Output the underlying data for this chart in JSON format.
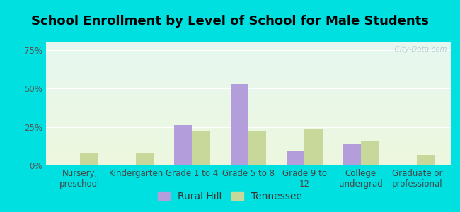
{
  "title": "School Enrollment by Level of School for Male Students",
  "categories": [
    "Nursery,\npreschool",
    "Kindergarten",
    "Grade 1 to 4",
    "Grade 5 to 8",
    "Grade 9 to\n12",
    "College\nundergrad",
    "Graduate or\nprofessional"
  ],
  "rural_hill": [
    0,
    0,
    26,
    53,
    9,
    14,
    0
  ],
  "tennessee": [
    8,
    8,
    22,
    22,
    24,
    16,
    7
  ],
  "rural_hill_color": "#b39ddb",
  "tennessee_color": "#c8d89a",
  "bar_width": 0.32,
  "yticks": [
    0,
    25,
    50,
    75
  ],
  "ytick_labels": [
    "0%",
    "25%",
    "50%",
    "75%"
  ],
  "ylim": [
    0,
    80
  ],
  "background_color": "#00e0e0",
  "title_fontsize": 13,
  "tick_fontsize": 8.5,
  "legend_fontsize": 10,
  "watermark": "  City-Data.com"
}
